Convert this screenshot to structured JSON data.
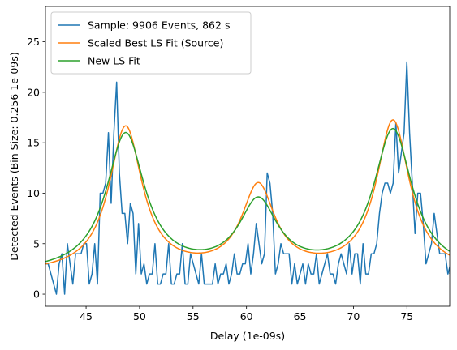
{
  "chart_data": {
    "type": "line",
    "xlabel": "Delay (1e-09s)",
    "ylabel": "Detected Events (Bin Size: 0.256 1e-09s)",
    "xlim": [
      41.2,
      79.0
    ],
    "ylim": [
      -1.2,
      28.5
    ],
    "xticks": [
      45,
      50,
      55,
      60,
      65,
      70,
      75
    ],
    "yticks": [
      0,
      5,
      10,
      15,
      20,
      25
    ],
    "legend_position": "upper-left",
    "grid": false,
    "series": [
      {
        "name": "Sample: 9906 Events, 862 s",
        "color": "#1f77b4",
        "x_start": 41.2,
        "x_step": 0.256,
        "values": [
          3,
          3,
          2,
          1,
          0,
          3,
          4,
          0,
          5,
          3,
          1,
          4,
          4,
          4,
          5,
          5,
          1,
          2,
          5,
          1,
          10,
          10,
          11,
          16,
          9,
          16,
          21,
          12,
          8,
          8,
          5,
          9,
          8,
          2,
          7,
          2,
          3,
          1,
          2,
          2,
          5,
          1,
          1,
          2,
          2,
          5,
          1,
          1,
          2,
          2,
          5,
          1,
          1,
          4,
          3,
          2,
          1,
          4,
          1,
          1,
          1,
          1,
          3,
          1,
          2,
          2,
          3,
          1,
          2,
          4,
          2,
          2,
          3,
          3,
          5,
          2,
          4,
          7,
          5,
          3,
          4,
          12,
          11,
          8,
          2,
          3,
          5,
          4,
          4,
          4,
          1,
          3,
          1,
          2,
          3,
          1,
          3,
          2,
          2,
          4,
          1,
          2,
          3,
          4,
          2,
          2,
          1,
          3,
          4,
          3,
          2,
          5,
          2,
          4,
          4,
          1,
          5,
          2,
          2,
          4,
          4,
          5,
          8,
          10,
          11,
          11,
          10,
          11,
          17,
          12,
          14,
          16,
          23,
          16,
          11,
          6,
          10,
          10,
          7,
          3,
          4,
          5,
          8,
          6,
          4,
          4,
          4,
          2,
          3,
          2
        ],
        "x_end": 79.0
      },
      {
        "name": "Scaled Best LS Fit (Source)",
        "color": "#ff7f0e",
        "peaks": [
          {
            "center": 48.7,
            "height": 16.4
          },
          {
            "center": 61.1,
            "height": 10.4
          },
          {
            "center": 73.7,
            "height": 17.0
          }
        ],
        "baseline": 2.0,
        "width": 1.9
      },
      {
        "name": "New LS Fit",
        "color": "#2ca02c",
        "peaks": [
          {
            "center": 48.7,
            "height": 15.7
          },
          {
            "center": 61.1,
            "height": 8.8
          },
          {
            "center": 73.7,
            "height": 16.1
          }
        ],
        "baseline": 2.0,
        "width": 2.2
      }
    ]
  }
}
